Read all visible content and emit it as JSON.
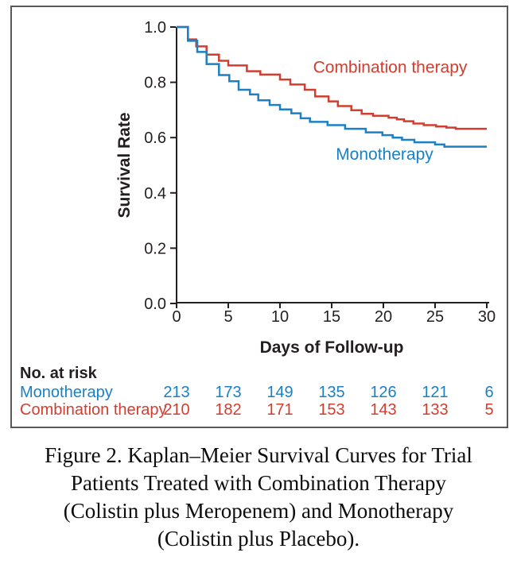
{
  "figure": {
    "caption_lines": [
      "Figure 2. Kaplan–Meier Survival Curves for Trial",
      "Patients Treated with Combination Therapy",
      "(Colistin plus Meropenem) and Monotherapy",
      "(Colistin plus Placebo)."
    ]
  },
  "colors": {
    "combination": "#d13e2f",
    "monotherapy": "#1b80c4",
    "axis": "#231f20",
    "frame_border": "#58595b"
  },
  "chart_data": {
    "type": "line",
    "subtype": "kaplan-meier-step",
    "title": "",
    "xlabel": "Days of Follow-up",
    "ylabel": "Survival Rate",
    "xlim": [
      0,
      30
    ],
    "ylim": [
      0.0,
      1.0
    ],
    "grid": false,
    "legend_position": "inline-curve-labels",
    "x_tick_labels": [
      "0",
      "5",
      "10",
      "15",
      "20",
      "25",
      "30"
    ],
    "x_tick_values": [
      0,
      5,
      10,
      15,
      20,
      25,
      30
    ],
    "y_tick_labels": [
      "0.0",
      "0.2",
      "0.4",
      "0.6",
      "0.8",
      "1.0"
    ],
    "y_tick_values": [
      0.0,
      0.2,
      0.4,
      0.6,
      0.8,
      1.0
    ],
    "series": [
      {
        "name": "Combination therapy",
        "color": "#d13e2f",
        "label_x": 13.2,
        "label_y": 0.835,
        "end_x": 30,
        "steps": [
          [
            0,
            1.0
          ],
          [
            1.1,
            0.955
          ],
          [
            1.9,
            0.93
          ],
          [
            2.9,
            0.9
          ],
          [
            4.1,
            0.878
          ],
          [
            5,
            0.861
          ],
          [
            6.8,
            0.84
          ],
          [
            8.1,
            0.828
          ],
          [
            10,
            0.81
          ],
          [
            11,
            0.792
          ],
          [
            12.4,
            0.773
          ],
          [
            13.4,
            0.749
          ],
          [
            14.7,
            0.731
          ],
          [
            15.6,
            0.714
          ],
          [
            16.9,
            0.699
          ],
          [
            17.9,
            0.686
          ],
          [
            19,
            0.679
          ],
          [
            20.5,
            0.672
          ],
          [
            21.3,
            0.666
          ],
          [
            22,
            0.659
          ],
          [
            22.9,
            0.651
          ],
          [
            23.9,
            0.645
          ],
          [
            25.1,
            0.64
          ],
          [
            26.1,
            0.636
          ],
          [
            27,
            0.632
          ]
        ]
      },
      {
        "name": "Monotherapy",
        "color": "#1b80c4",
        "label_x": 15.4,
        "label_y": 0.52,
        "end_x": 30,
        "steps": [
          [
            0,
            1.0
          ],
          [
            1.1,
            0.95
          ],
          [
            2,
            0.91
          ],
          [
            2.9,
            0.866
          ],
          [
            4.1,
            0.826
          ],
          [
            5.1,
            0.804
          ],
          [
            6,
            0.773
          ],
          [
            7.1,
            0.756
          ],
          [
            7.9,
            0.735
          ],
          [
            9,
            0.718
          ],
          [
            10,
            0.702
          ],
          [
            11.1,
            0.688
          ],
          [
            12,
            0.67
          ],
          [
            12.9,
            0.657
          ],
          [
            14.6,
            0.645
          ],
          [
            16.3,
            0.632
          ],
          [
            18.3,
            0.619
          ],
          [
            19.9,
            0.609
          ],
          [
            20.9,
            0.6
          ],
          [
            21.8,
            0.592
          ],
          [
            23,
            0.583
          ],
          [
            25,
            0.575
          ],
          [
            25.9,
            0.567
          ]
        ]
      }
    ]
  },
  "risk_table": {
    "header": "No. at risk",
    "columns_days": [
      0,
      5,
      10,
      15,
      20,
      25,
      30
    ],
    "rows": [
      {
        "label": "Monotherapy",
        "color": "#1b80c4",
        "values": [
          "213",
          "173",
          "149",
          "135",
          "126",
          "121",
          "6"
        ]
      },
      {
        "label": "Combination therapy",
        "color": "#d13e2f",
        "values": [
          "210",
          "182",
          "171",
          "153",
          "143",
          "133",
          "5"
        ]
      }
    ]
  }
}
